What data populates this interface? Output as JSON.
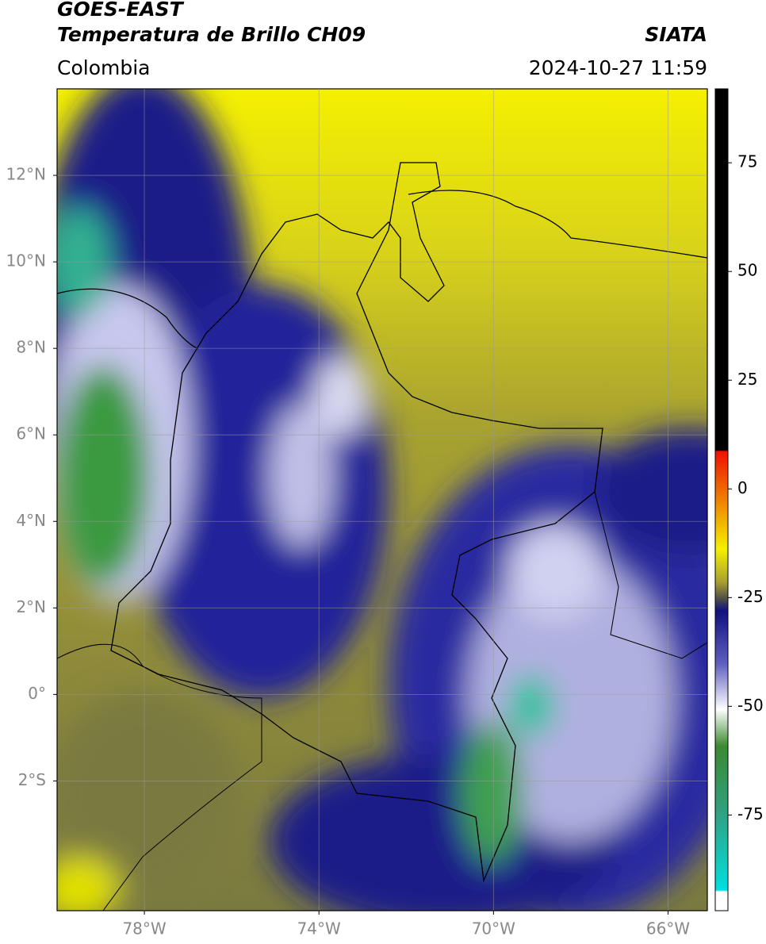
{
  "header": {
    "title": "GOES-EAST",
    "subtitle": "Temperatura de Brillo CH09",
    "source": "SIATA",
    "region": "Colombia",
    "timestamp": "2024-10-27 11:59"
  },
  "map": {
    "xlim": [
      -80,
      -65.1
    ],
    "ylim": [
      -5,
      14
    ],
    "xticks": [
      {
        "value": -78,
        "label": "78°W"
      },
      {
        "value": -74,
        "label": "74°W"
      },
      {
        "value": -70,
        "label": "70°W"
      },
      {
        "value": -66,
        "label": "66°W"
      }
    ],
    "yticks": [
      {
        "value": 12,
        "label": "12°N"
      },
      {
        "value": 10,
        "label": "10°N"
      },
      {
        "value": 8,
        "label": "8°N"
      },
      {
        "value": 6,
        "label": "6°N"
      },
      {
        "value": 4,
        "label": "4°N"
      },
      {
        "value": 2,
        "label": "2°N"
      },
      {
        "value": 0,
        "label": "0°"
      },
      {
        "value": -2,
        "label": "2°S"
      }
    ],
    "grid": true
  },
  "colorbar": {
    "lim": [
      -97,
      92
    ],
    "ticks": [
      75,
      50,
      25,
      0,
      -25,
      -50,
      -75
    ]
  }
}
